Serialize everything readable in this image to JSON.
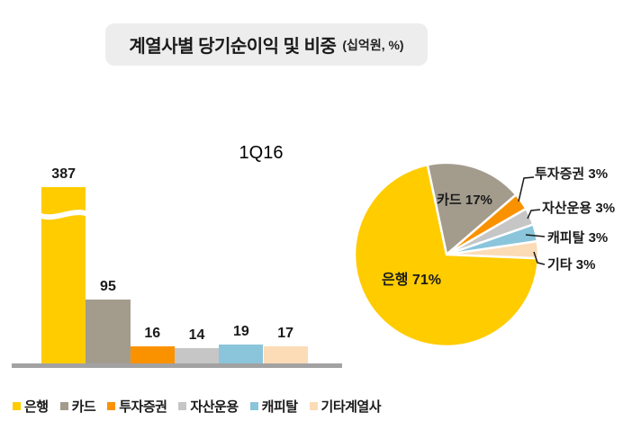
{
  "header": {
    "title": "계열사별 당기순이익 및 비중",
    "unit": "(십억원, %)"
  },
  "chart_data": [
    {
      "type": "bar",
      "title": "1Q16",
      "categories": [
        "은행",
        "카드",
        "투자증권",
        "자산운용",
        "캐피탈",
        "기타계열사"
      ],
      "values": [
        387,
        95,
        16,
        14,
        19,
        17
      ],
      "unit": "십억원",
      "colors": [
        "#FFCC00",
        "#A39C8D",
        "#FA9200",
        "#C6C6C6",
        "#8AC5DB",
        "#FBDCB7"
      ],
      "axis_break_on_first_bar": true,
      "grid": "off",
      "value_labels": "above bars"
    },
    {
      "type": "pie",
      "labels": [
        "카드",
        "투자증권",
        "자산운용",
        "캐피탈",
        "기타",
        "은행"
      ],
      "values": [
        17,
        3,
        3,
        3,
        3,
        71
      ],
      "unit": "%",
      "colors": [
        "#A39C8D",
        "#FA9200",
        "#C6C6C6",
        "#8AC5DB",
        "#FBDCB7",
        "#FFCC00"
      ],
      "start_angle_deg": -12,
      "inside_labels": [
        "카드 17%",
        "은행 71%"
      ],
      "callout_labels": [
        "투자증권 3%",
        "자산운용 3%",
        "캐피탈 3%",
        "기타 3%"
      ]
    }
  ],
  "legend": {
    "items": [
      {
        "label": "은행",
        "color": "#FFCC00"
      },
      {
        "label": "카드",
        "color": "#A39C8D"
      },
      {
        "label": "투자증권",
        "color": "#FA9200"
      },
      {
        "label": "자산운용",
        "color": "#C6C6C6"
      },
      {
        "label": "캐피탈",
        "color": "#8AC5DB"
      },
      {
        "label": "기타계열사",
        "color": "#FBDCB7"
      }
    ]
  }
}
